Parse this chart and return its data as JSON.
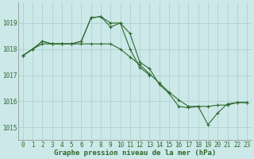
{
  "x": [
    0,
    1,
    2,
    3,
    4,
    5,
    6,
    7,
    8,
    9,
    10,
    11,
    12,
    13,
    14,
    15,
    16,
    17,
    18,
    19,
    20,
    21,
    22,
    23
  ],
  "line1": [
    1017.75,
    1018.0,
    1018.3,
    1018.2,
    1018.2,
    1018.2,
    1018.3,
    1019.2,
    1019.25,
    1018.85,
    1019.0,
    1018.6,
    1017.5,
    1017.25,
    1016.65,
    1016.3,
    1015.8,
    1015.75,
    1015.8,
    1015.1,
    1015.55,
    1015.9,
    1015.95,
    1015.95
  ],
  "line2": [
    1017.75,
    1018.0,
    1018.3,
    1018.2,
    1018.2,
    1018.2,
    1018.3,
    1019.2,
    1019.25,
    1019.0,
    1019.0,
    1018.0,
    1017.3,
    1017.0,
    null,
    null,
    null,
    null,
    null,
    null,
    null,
    null,
    null,
    null
  ],
  "line3": [
    1017.75,
    1018.0,
    1018.2,
    1018.2,
    1018.2,
    1018.2,
    1018.2,
    1018.2,
    1018.2,
    1018.2,
    1018.0,
    1017.7,
    1017.4,
    1017.05,
    1016.7,
    1016.35,
    1016.05,
    1015.8,
    1015.8,
    1015.8,
    1015.85,
    1015.85,
    1015.95,
    1015.95
  ],
  "line_color": "#2d6a2d",
  "bg_color": "#cce8e8",
  "grid_color": "#aacece",
  "ylim": [
    1014.5,
    1019.8
  ],
  "yticks": [
    1015,
    1016,
    1017,
    1018,
    1019
  ],
  "xticks": [
    0,
    1,
    2,
    3,
    4,
    5,
    6,
    7,
    8,
    9,
    10,
    11,
    12,
    13,
    14,
    15,
    16,
    17,
    18,
    19,
    20,
    21,
    22,
    23
  ],
  "xlabel": "Graphe pression niveau de la mer (hPa)",
  "marker": "+",
  "linewidth": 0.8,
  "markersize": 3,
  "markeredgewidth": 0.8,
  "tick_fontsize": 5.5,
  "xlabel_fontsize": 6.5
}
